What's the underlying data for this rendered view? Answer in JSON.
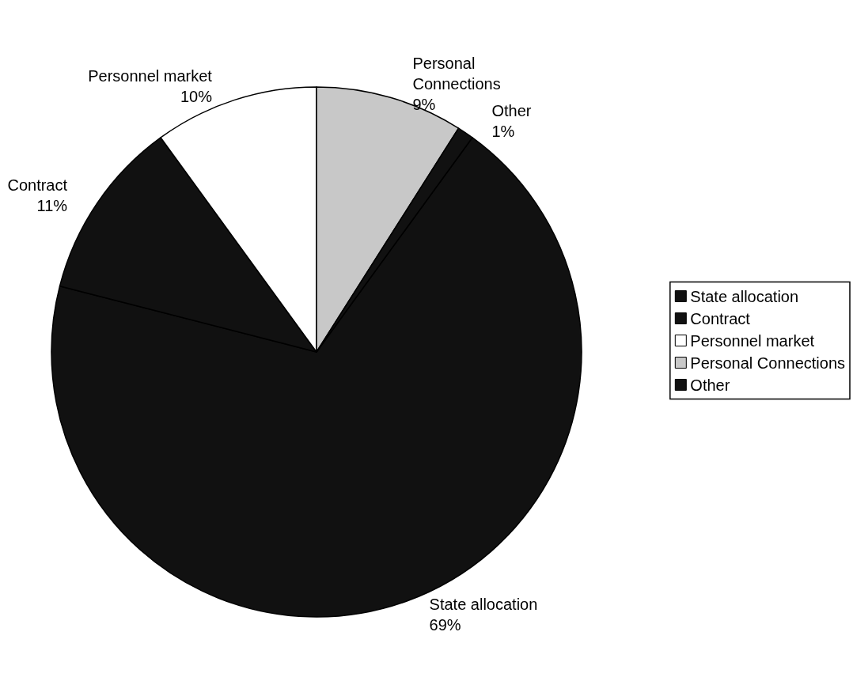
{
  "chart_data": {
    "type": "pie",
    "categories": [
      "State allocation",
      "Contract",
      "Personnel market",
      "Personal Connections",
      "Other"
    ],
    "values": [
      69,
      11,
      10,
      9,
      1
    ],
    "value_labels": [
      "69%",
      "11%",
      "10%",
      "9%",
      "1%"
    ],
    "colors": [
      "#111111",
      "#111111",
      "#ffffff",
      "#c8c8c8",
      "#111111"
    ],
    "legend": "right"
  }
}
